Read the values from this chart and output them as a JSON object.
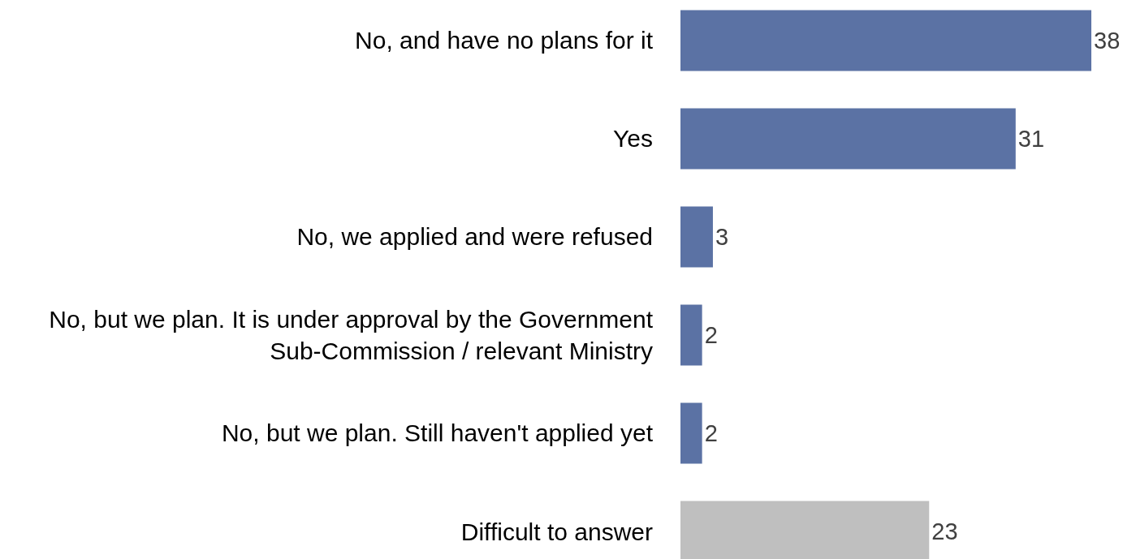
{
  "chart_data": {
    "type": "bar",
    "orientation": "horizontal",
    "categories": [
      "No, and have no plans for it",
      "Yes",
      "No, we applied and were refused",
      "No, but we plan. It is under approval by the Government Sub-Commission / relevant Ministry",
      "No, but we plan. Still haven't applied yet",
      "Difficult to answer"
    ],
    "values": [
      38,
      31,
      3,
      2,
      2,
      23
    ],
    "colors": [
      "#5b72a4",
      "#5b72a4",
      "#5b72a4",
      "#5b72a4",
      "#5b72a4",
      "#bfbfbf"
    ],
    "data_labels": true,
    "tick_labels": "y"
  }
}
